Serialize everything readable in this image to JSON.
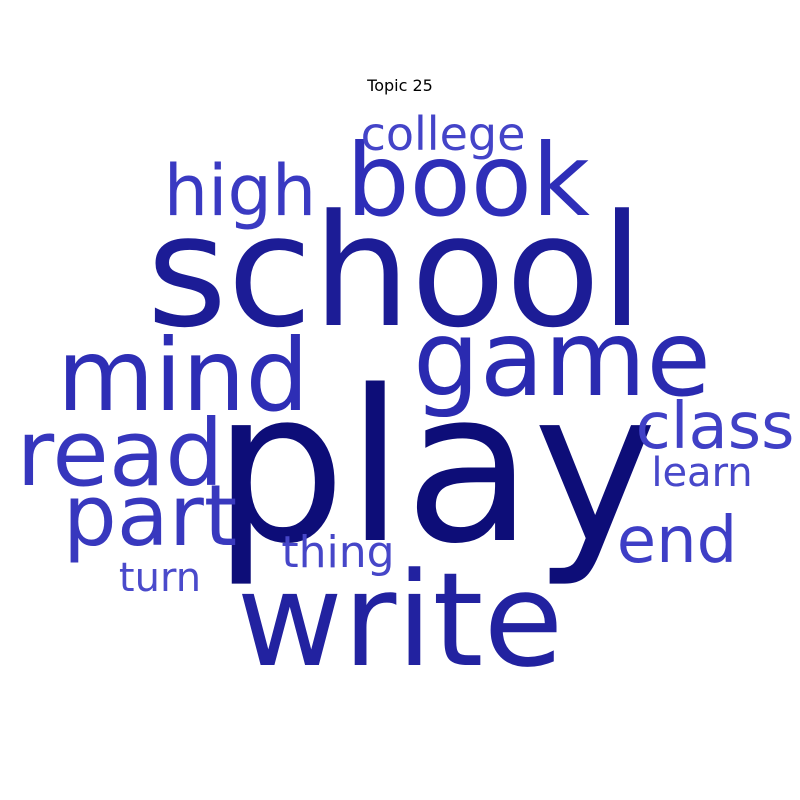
{
  "chart_data": {
    "type": "wordcloud",
    "title": "Topic 25",
    "words": [
      {
        "text": "play",
        "weight": 1.0,
        "color": "#0d0d78"
      },
      {
        "text": "school",
        "weight": 0.92,
        "color": "#1c1c96"
      },
      {
        "text": "write",
        "weight": 0.78,
        "color": "#2222a0"
      },
      {
        "text": "game",
        "weight": 0.66,
        "color": "#2a2ab0"
      },
      {
        "text": "book",
        "weight": 0.64,
        "color": "#2e2eb8"
      },
      {
        "text": "mind",
        "weight": 0.62,
        "color": "#2e2eb5"
      },
      {
        "text": "read",
        "weight": 0.58,
        "color": "#3636bd"
      },
      {
        "text": "part",
        "weight": 0.55,
        "color": "#3838be"
      },
      {
        "text": "high",
        "weight": 0.49,
        "color": "#3a3ac2"
      },
      {
        "text": "class",
        "weight": 0.46,
        "color": "#4040c6"
      },
      {
        "text": "end",
        "weight": 0.45,
        "color": "#3e3ec6"
      },
      {
        "text": "college",
        "weight": 0.33,
        "color": "#4444c8"
      },
      {
        "text": "thing",
        "weight": 0.32,
        "color": "#4646c8"
      },
      {
        "text": "learn",
        "weight": 0.3,
        "color": "#4848ca"
      },
      {
        "text": "turn",
        "weight": 0.29,
        "color": "#4a4acb"
      }
    ]
  }
}
